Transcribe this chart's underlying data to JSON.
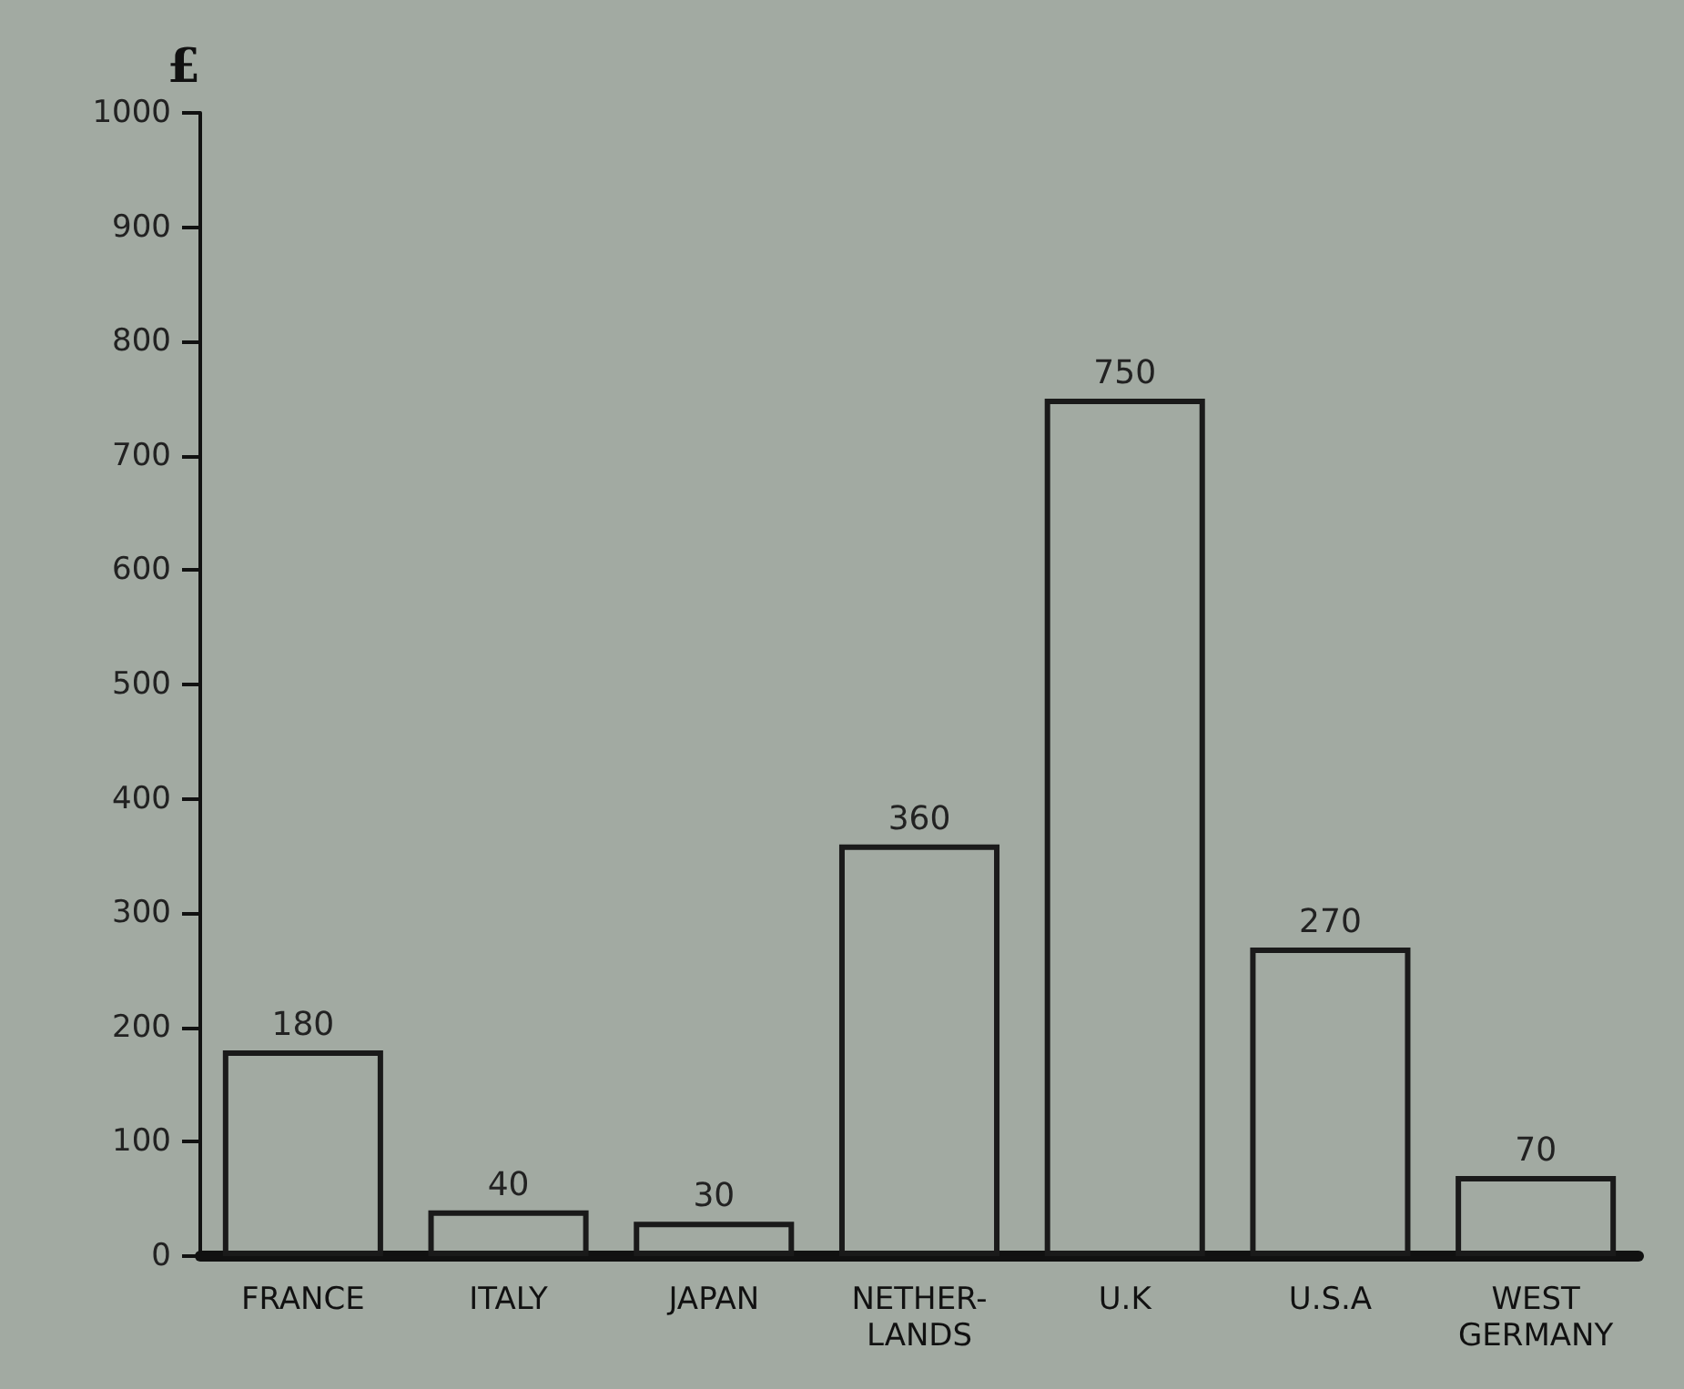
{
  "chart_data": {
    "type": "bar",
    "ylabel": "£",
    "categories": [
      "FRANCE",
      "ITALY",
      "JAPAN",
      "NETHER-\nLANDS",
      "U.K",
      "U.S.A",
      "WEST\nGERMANY"
    ],
    "values": [
      180,
      40,
      30,
      360,
      750,
      270,
      70
    ],
    "color": "#1a1a1a",
    "ylim": [
      0,
      1000
    ],
    "yticks": [
      0,
      100,
      200,
      300,
      400,
      500,
      600,
      700,
      800,
      900,
      1000
    ],
    "data_labels": true,
    "grid": false
  }
}
